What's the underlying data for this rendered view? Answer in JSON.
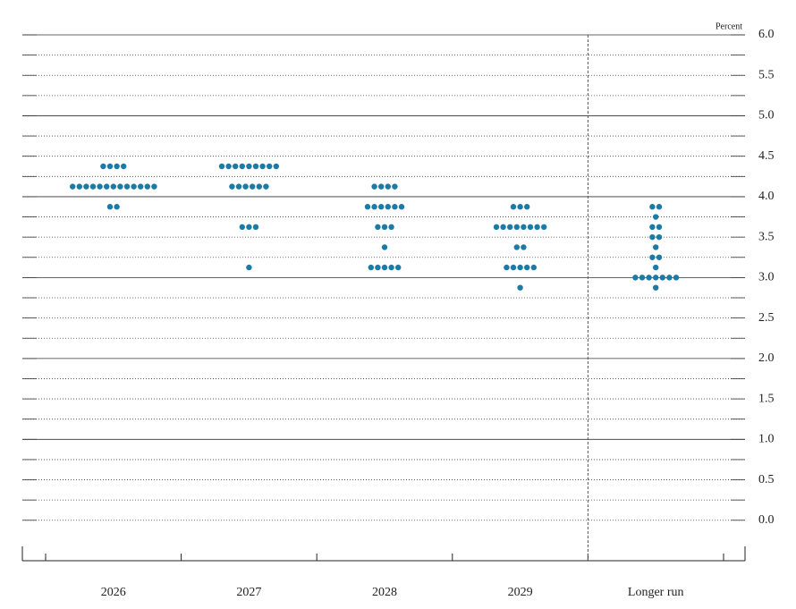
{
  "chart_data": {
    "type": "dot",
    "unit_label": "Percent",
    "categories": [
      "2026",
      "2027",
      "2028",
      "2029",
      "Longer run"
    ],
    "dots": [
      [
        {
          "value": 4.375,
          "count": 4
        },
        {
          "value": 4.125,
          "count": 13
        },
        {
          "value": 3.875,
          "count": 2
        }
      ],
      [
        {
          "value": 4.375,
          "count": 9
        },
        {
          "value": 4.125,
          "count": 6
        },
        {
          "value": 3.625,
          "count": 3
        },
        {
          "value": 3.125,
          "count": 1
        }
      ],
      [
        {
          "value": 4.125,
          "count": 4
        },
        {
          "value": 3.875,
          "count": 6
        },
        {
          "value": 3.625,
          "count": 3
        },
        {
          "value": 3.375,
          "count": 1
        },
        {
          "value": 3.125,
          "count": 5
        }
      ],
      [
        {
          "value": 3.875,
          "count": 3
        },
        {
          "value": 3.625,
          "count": 8
        },
        {
          "value": 3.375,
          "count": 2
        },
        {
          "value": 3.125,
          "count": 5
        },
        {
          "value": 2.875,
          "count": 1
        }
      ],
      [
        {
          "value": 3.875,
          "count": 2
        },
        {
          "value": 3.75,
          "count": 1
        },
        {
          "value": 3.625,
          "count": 2
        },
        {
          "value": 3.5,
          "count": 2
        },
        {
          "value": 3.375,
          "count": 1
        },
        {
          "value": 3.25,
          "count": 2
        },
        {
          "value": 3.125,
          "count": 1
        },
        {
          "value": 3.0,
          "count": 7
        },
        {
          "value": 2.875,
          "count": 1
        }
      ]
    ],
    "color": "#1b7aa6",
    "ylim": [
      -0.5,
      6.0
    ],
    "yticks": [
      {
        "value": 0,
        "label": "0.0"
      },
      {
        "value": 0.5,
        "label": "0.5"
      },
      {
        "value": 1,
        "label": "1.0"
      },
      {
        "value": 1.5,
        "label": "1.5"
      },
      {
        "value": 2,
        "label": "2.0"
      },
      {
        "value": 2.5,
        "label": "2.5"
      },
      {
        "value": 3,
        "label": "3.0"
      },
      {
        "value": 3.5,
        "label": "3.5"
      },
      {
        "value": 4,
        "label": "4.0"
      },
      {
        "value": 4.5,
        "label": "4.5"
      },
      {
        "value": 5,
        "label": "5.0"
      },
      {
        "value": 5.5,
        "label": "5.5"
      },
      {
        "value": 6,
        "label": "6.0"
      }
    ],
    "minor_yticks": [
      0.25,
      0.75,
      1.25,
      1.75,
      2.25,
      2.75,
      3.25,
      3.75,
      4.25,
      4.75,
      5.25,
      5.75
    ],
    "separator_before": 4,
    "grid": true
  }
}
